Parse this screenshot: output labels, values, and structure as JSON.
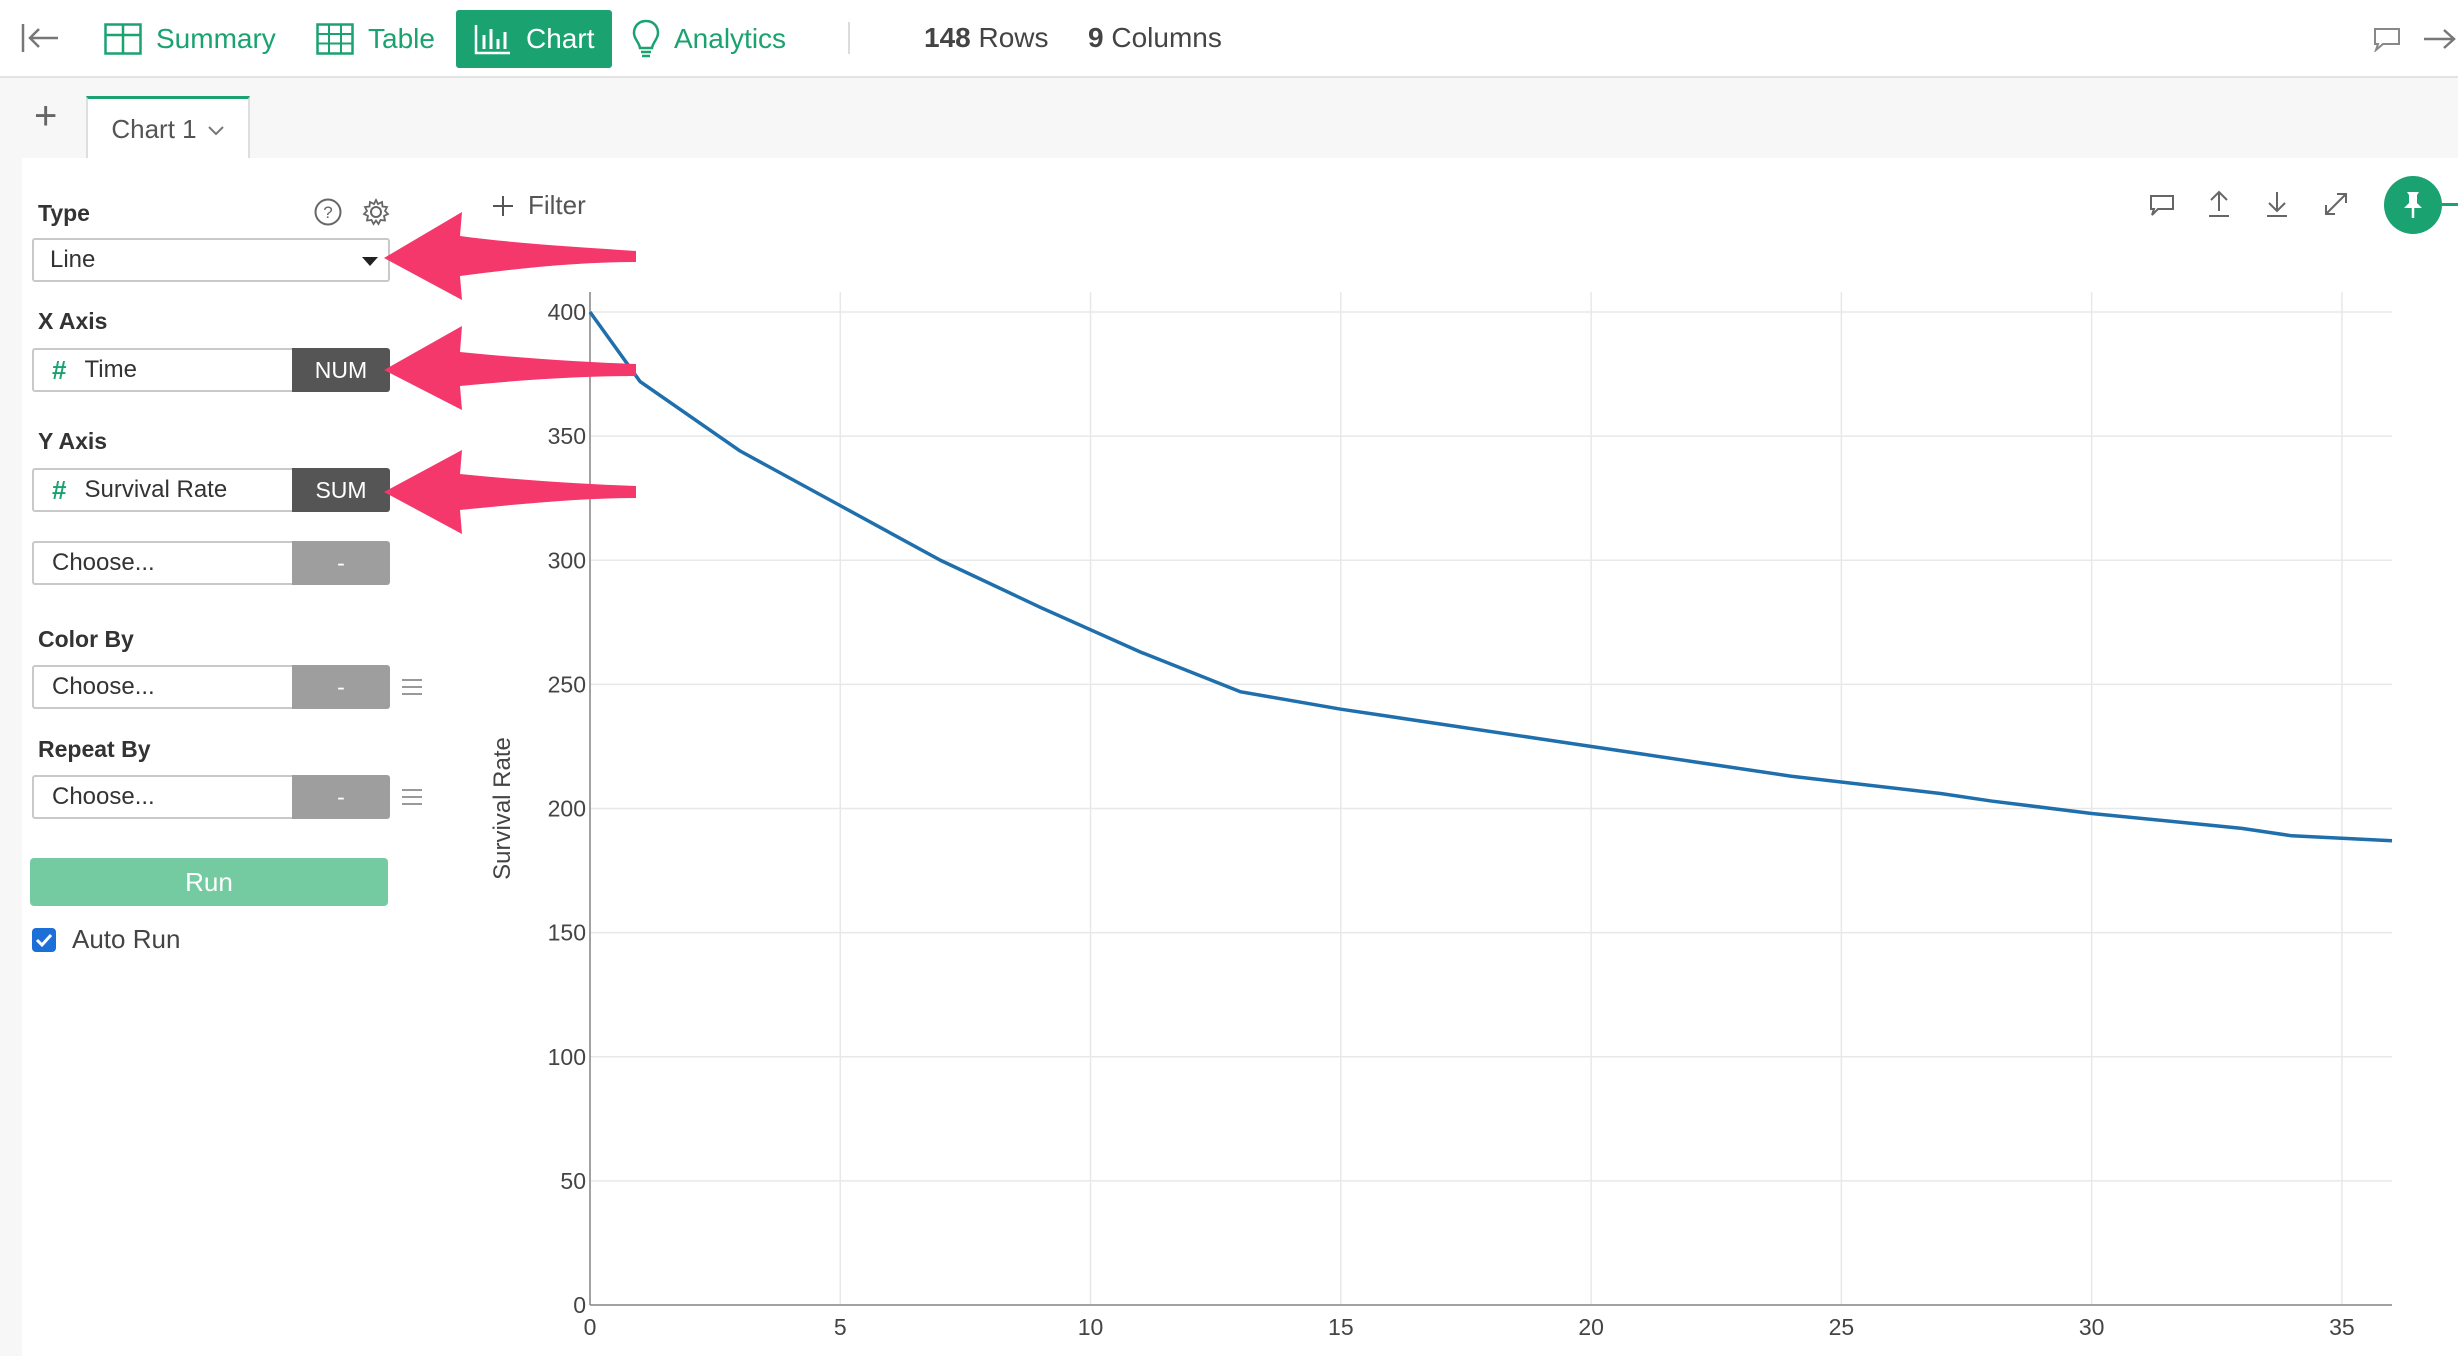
{
  "toolbar": {
    "summary_label": "Summary",
    "table_label": "Table",
    "chart_label": "Chart",
    "analytics_label": "Analytics",
    "rows_count": "148",
    "rows_label": "Rows",
    "columns_count": "9",
    "columns_label": "Columns",
    "accent_color": "#1ba271"
  },
  "tabs": [
    {
      "label": "Chart 1"
    }
  ],
  "panel": {
    "type_label": "Type",
    "type_value": "Line",
    "x_axis_label": "X Axis",
    "x_field": {
      "name": "Time",
      "agg": "NUM"
    },
    "y_axis_label": "Y Axis",
    "y_field": {
      "name": "Survival Rate",
      "agg": "SUM"
    },
    "y_extra": {
      "name": "Choose...",
      "agg": "-"
    },
    "color_by_label": "Color By",
    "color_by": {
      "name": "Choose...",
      "agg": "-"
    },
    "repeat_by_label": "Repeat By",
    "repeat_by": {
      "name": "Choose...",
      "agg": "-"
    },
    "run_label": "Run",
    "auto_run_label": "Auto Run",
    "auto_run_checked": true
  },
  "chart_header": {
    "filter_label": "Filter"
  },
  "annotation_color": "#f5386b",
  "chart_data": {
    "type": "line",
    "title": "",
    "xlabel": "",
    "ylabel": "Survival Rate",
    "xlim": [
      0,
      36
    ],
    "ylim": [
      0,
      400
    ],
    "x_ticks": [
      0,
      5,
      10,
      15,
      20,
      25,
      30,
      35
    ],
    "y_ticks": [
      0,
      50,
      100,
      150,
      200,
      250,
      300,
      350,
      400
    ],
    "grid": true,
    "line_color": "#1f6fad",
    "series": [
      {
        "x": [
          0,
          1,
          3,
          5,
          7,
          9,
          11,
          13,
          15,
          17,
          19,
          21,
          22,
          24,
          27,
          28,
          30,
          32,
          33,
          34,
          35,
          36
        ],
        "values": [
          400,
          372,
          344,
          322,
          300,
          281,
          263,
          247,
          240,
          234,
          228,
          222,
          219,
          213,
          206,
          203,
          198,
          194,
          192,
          189,
          188,
          187
        ]
      }
    ]
  }
}
